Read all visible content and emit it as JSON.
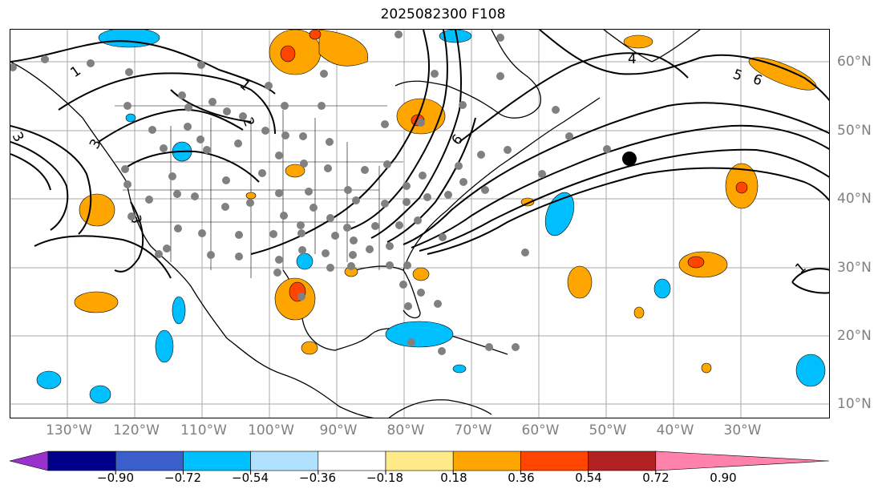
{
  "title": "2025082300 F108",
  "longitude_labels": [
    "130°W",
    "120°W",
    "110°W",
    "100°W",
    "90°W",
    "80°W",
    "70°W",
    "60°W",
    "50°W",
    "40°W",
    "30°W"
  ],
  "latitude_labels": [
    "60°N",
    "50°N",
    "40°N",
    "30°N",
    "20°N",
    "10°N"
  ],
  "colorbar": {
    "tick_labels": [
      "−0.90",
      "−0.72",
      "−0.54",
      "−0.36",
      "−0.18",
      "0.18",
      "0.36",
      "0.54",
      "0.72",
      "0.90"
    ],
    "colors": [
      "#9932cc",
      "#00008b",
      "#3a5fcd",
      "#00bfff",
      "#b0e2ff",
      "#ffffff",
      "#ffea8a",
      "#ffa500",
      "#ff4500",
      "#b22222",
      "#ff82ab"
    ]
  },
  "contour_labels": [
    "1",
    "2",
    "3",
    "3",
    "3",
    "4",
    "5",
    "6",
    "6",
    "1",
    "1"
  ],
  "colors": {
    "land_outline": "#000000",
    "grid": "#aaaaaa",
    "station_dot": "#808080",
    "marker": "#000000"
  },
  "icons": {
    "center_marker": "black-dot",
    "stations": "gray-dots"
  }
}
